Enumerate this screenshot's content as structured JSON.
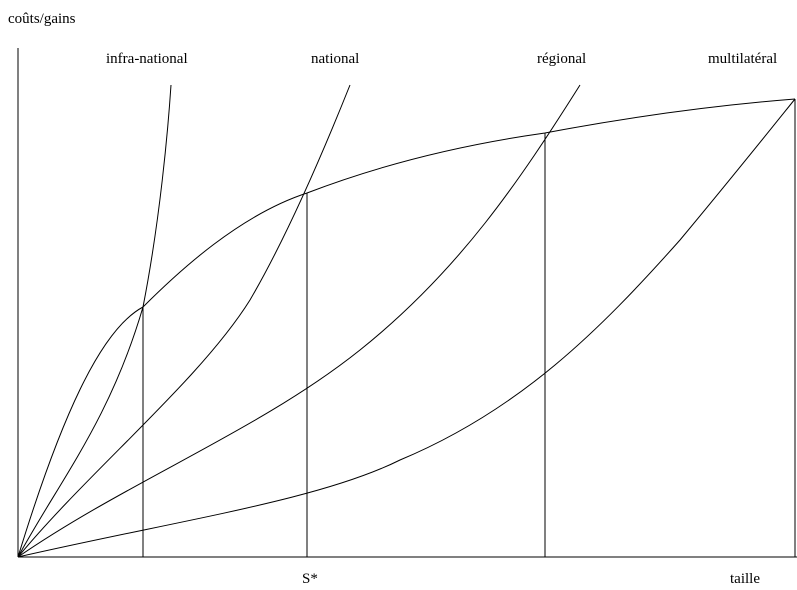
{
  "diagram": {
    "axis_labels": {
      "y": "coûts/gains",
      "x": "taille"
    },
    "curve_labels": {
      "infra_national": "infra-national",
      "national": "national",
      "regional": "régional",
      "multilateral": "multilatéral"
    },
    "marker_label": "S*",
    "colors": {
      "line": "#000000",
      "background": "#ffffff"
    }
  }
}
